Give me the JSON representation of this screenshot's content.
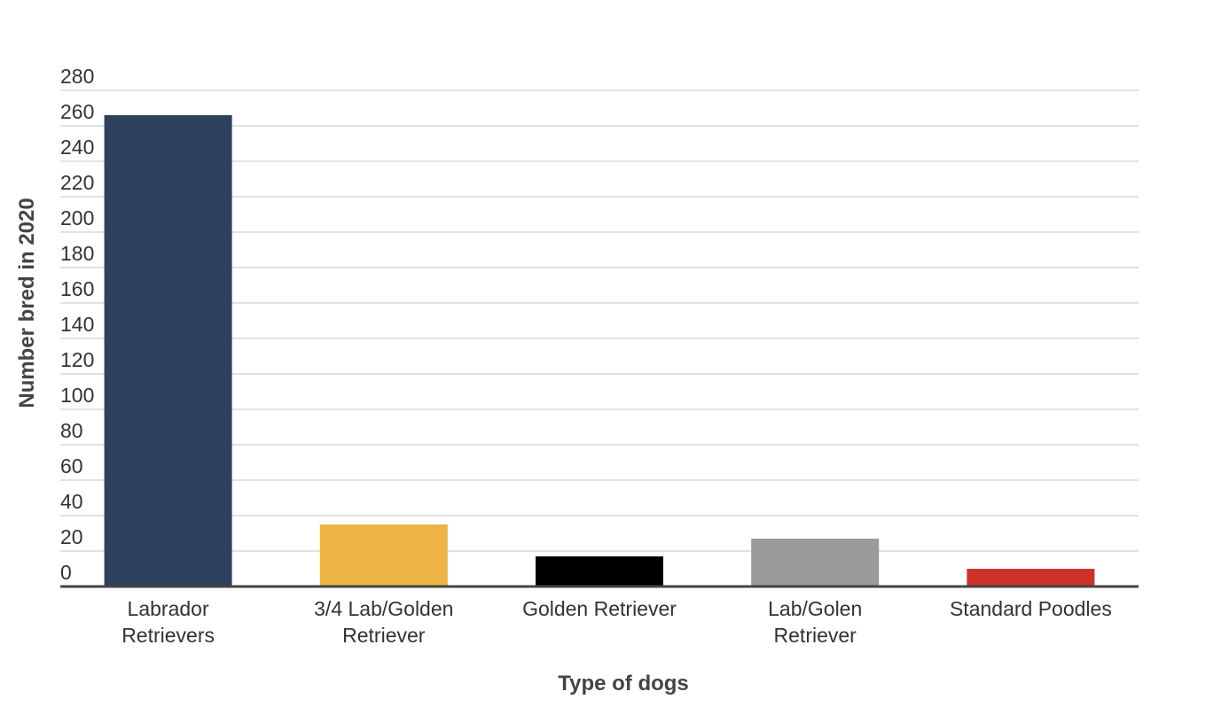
{
  "chart_data": {
    "type": "bar",
    "categories": [
      [
        "Labrador",
        "Retrievers"
      ],
      [
        "3/4 Lab/Golden",
        "Retriever"
      ],
      [
        "Golden Retriever"
      ],
      [
        "Lab/Golen",
        "Retriever"
      ],
      [
        "Standard Poodles"
      ]
    ],
    "values": [
      266,
      35,
      17,
      27,
      10
    ],
    "colors": [
      "#2e415c",
      "#ecb445",
      "#000000",
      "#9a9a9a",
      "#d0302c"
    ],
    "title": "",
    "xlabel": "Type of dogs",
    "ylabel": "Number bred in 2020",
    "ylim": [
      0,
      280
    ],
    "yticks": [
      0,
      20,
      40,
      60,
      80,
      100,
      120,
      140,
      160,
      180,
      200,
      220,
      240,
      260,
      280
    ],
    "grid": true,
    "legend": "none"
  }
}
